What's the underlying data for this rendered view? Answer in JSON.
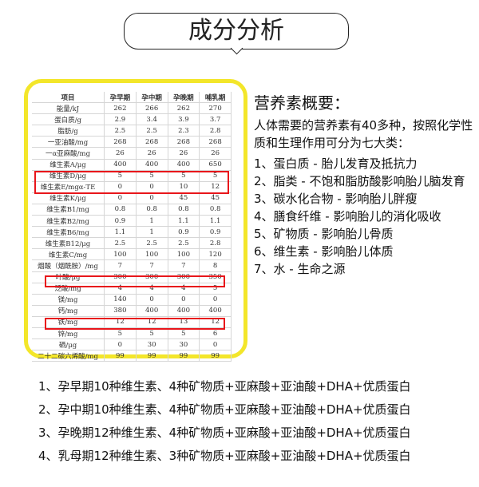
{
  "title": "成分分析",
  "table": {
    "headers": [
      "项目",
      "孕早期",
      "孕中期",
      "孕晚期",
      "哺乳期"
    ],
    "rows": [
      [
        "能量/kJ",
        "262",
        "266",
        "262",
        "270"
      ],
      [
        "蛋白质/g",
        "2.9",
        "3.4",
        "3.9",
        "3.7"
      ],
      [
        "脂肪/g",
        "2.5",
        "2.5",
        "2.3",
        "2.8"
      ],
      [
        "一亚油酸/mg",
        "268",
        "268",
        "268",
        "268"
      ],
      [
        "一α亚麻酸/mg",
        "26",
        "26",
        "26",
        "26"
      ],
      [
        "维生素A/μg",
        "400",
        "400",
        "400",
        "650"
      ],
      [
        "维生素D/μg",
        "5",
        "5",
        "5",
        "5"
      ],
      [
        "维生素E/mgα-TE",
        "0",
        "0",
        "10",
        "12"
      ],
      [
        "维生素K/μg",
        "0",
        "0",
        "45",
        "45"
      ],
      [
        "维生素B1/mg",
        "0.8",
        "0.8",
        "0.8",
        "0.8"
      ],
      [
        "维生素B2/mg",
        "0.9",
        "1",
        "1.1",
        "1.1"
      ],
      [
        "维生素B6/mg",
        "1.1",
        "1",
        "0.9",
        "0.9"
      ],
      [
        "维生素B12/μg",
        "2.5",
        "2.5",
        "2.5",
        "2.8"
      ],
      [
        "维生素C/mg",
        "100",
        "100",
        "100",
        "120"
      ],
      [
        "烟酸（烟酰胺）/mg",
        "7",
        "7",
        "7",
        "8"
      ],
      [
        "叶酸/μg",
        "300",
        "300",
        "300",
        "350"
      ],
      [
        "泛酸/mg",
        "4",
        "4",
        "4",
        "5"
      ],
      [
        "镁/mg",
        "140",
        "0",
        "0",
        "0"
      ],
      [
        "钙/mg",
        "380",
        "400",
        "400",
        "400"
      ],
      [
        "铁/mg",
        "12",
        "12",
        "13",
        "12"
      ],
      [
        "锌/mg",
        "5",
        "5",
        "5",
        "6"
      ],
      [
        "硒/μg",
        "0",
        "30",
        "30",
        "0"
      ],
      [
        "二十二碳六烯酸/mg",
        "99",
        "99",
        "99",
        "99"
      ]
    ]
  },
  "summary": {
    "heading": "营养素概要：",
    "intro": "人体需要的营养素有40多种，按照化学性质和生理作用可分为七大类：",
    "items": [
      "1、蛋白质 - 胎儿发育及抵抗力",
      "2、脂类 - 不饱和脂肪酸影响胎儿脑发育",
      "3、碳水化合物 - 影响胎儿胖瘦",
      "4、膳食纤维 - 影响胎儿的消化吸收",
      "5、矿物质 - 影响胎儿骨质",
      "6、维生素 - 影响胎儿体质",
      "7、水 -  生命之源"
    ]
  },
  "stages": [
    "1、孕早期10种维生素、4种矿物质+亚麻酸+亚油酸+DHA+优质蛋白",
    "2、孕中期10种维生素、4种矿物质+亚麻酸+亚油酸+DHA+优质蛋白",
    "3、孕晚期12种维生素、4种矿物质+亚麻酸+亚油酸+DHA+优质蛋白",
    "4、乳母期12种维生素、3种矿物质+亚麻酸+亚油酸+DHA+优质蛋白"
  ],
  "colors": {
    "frame": "#f3e62a",
    "highlight": "#e8161b"
  }
}
